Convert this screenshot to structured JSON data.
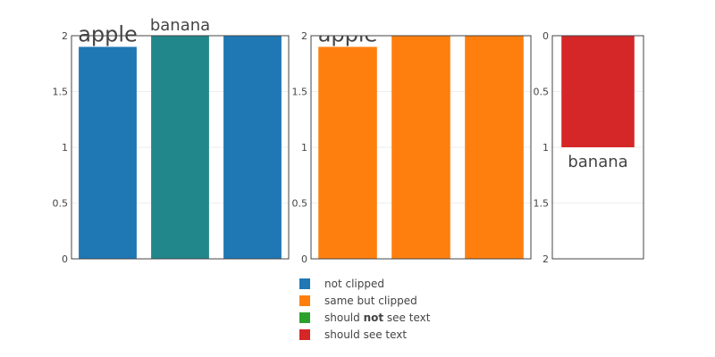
{
  "chart_data": [
    {
      "type": "bar",
      "panel": "left",
      "ylim": [
        0,
        2
      ],
      "y_reversed": false,
      "yticks": [
        "0",
        "0.5",
        "1",
        "1.5",
        "2"
      ],
      "bars": [
        {
          "value": 1.9,
          "color": "#1f77b4",
          "text": "apple",
          "text_size": "large"
        },
        {
          "value": 2.0,
          "color": "#21878a",
          "text": "banana",
          "text_size": "medium"
        },
        {
          "value": 2.0,
          "color": "#1f77b4",
          "text": ""
        }
      ]
    },
    {
      "type": "bar",
      "panel": "middle",
      "ylim": [
        0,
        2
      ],
      "y_reversed": false,
      "yticks": [
        "0",
        "0.5",
        "1",
        "1.5",
        "2"
      ],
      "clipped": true,
      "bars": [
        {
          "value": 1.9,
          "color": "#ff7f0e",
          "text": "apple",
          "text_size": "large"
        },
        {
          "value": 2.0,
          "color": "#ff7f0e",
          "text": ""
        },
        {
          "value": 2.0,
          "color": "#ff7f0e",
          "text": ""
        }
      ]
    },
    {
      "type": "bar",
      "panel": "right",
      "ylim": [
        0,
        2
      ],
      "y_reversed": true,
      "yticks": [
        "0",
        "0.5",
        "1",
        "1.5",
        "2"
      ],
      "bars": [
        {
          "value": 1.0,
          "color": "#d62728",
          "text": "banana",
          "text_size": "medium"
        }
      ]
    }
  ],
  "legend": {
    "placement": "bottom-center",
    "items": [
      {
        "label": "not clipped",
        "bold": "",
        "suffix": "",
        "color": "#1f77b4"
      },
      {
        "label": "same but clipped",
        "bold": "",
        "suffix": "",
        "color": "#ff7f0e"
      },
      {
        "label": "should ",
        "bold": "not",
        "suffix": " see text",
        "color": "#2ca02c"
      },
      {
        "label": "should see text",
        "bold": "",
        "suffix": "",
        "color": "#d62728"
      }
    ]
  }
}
